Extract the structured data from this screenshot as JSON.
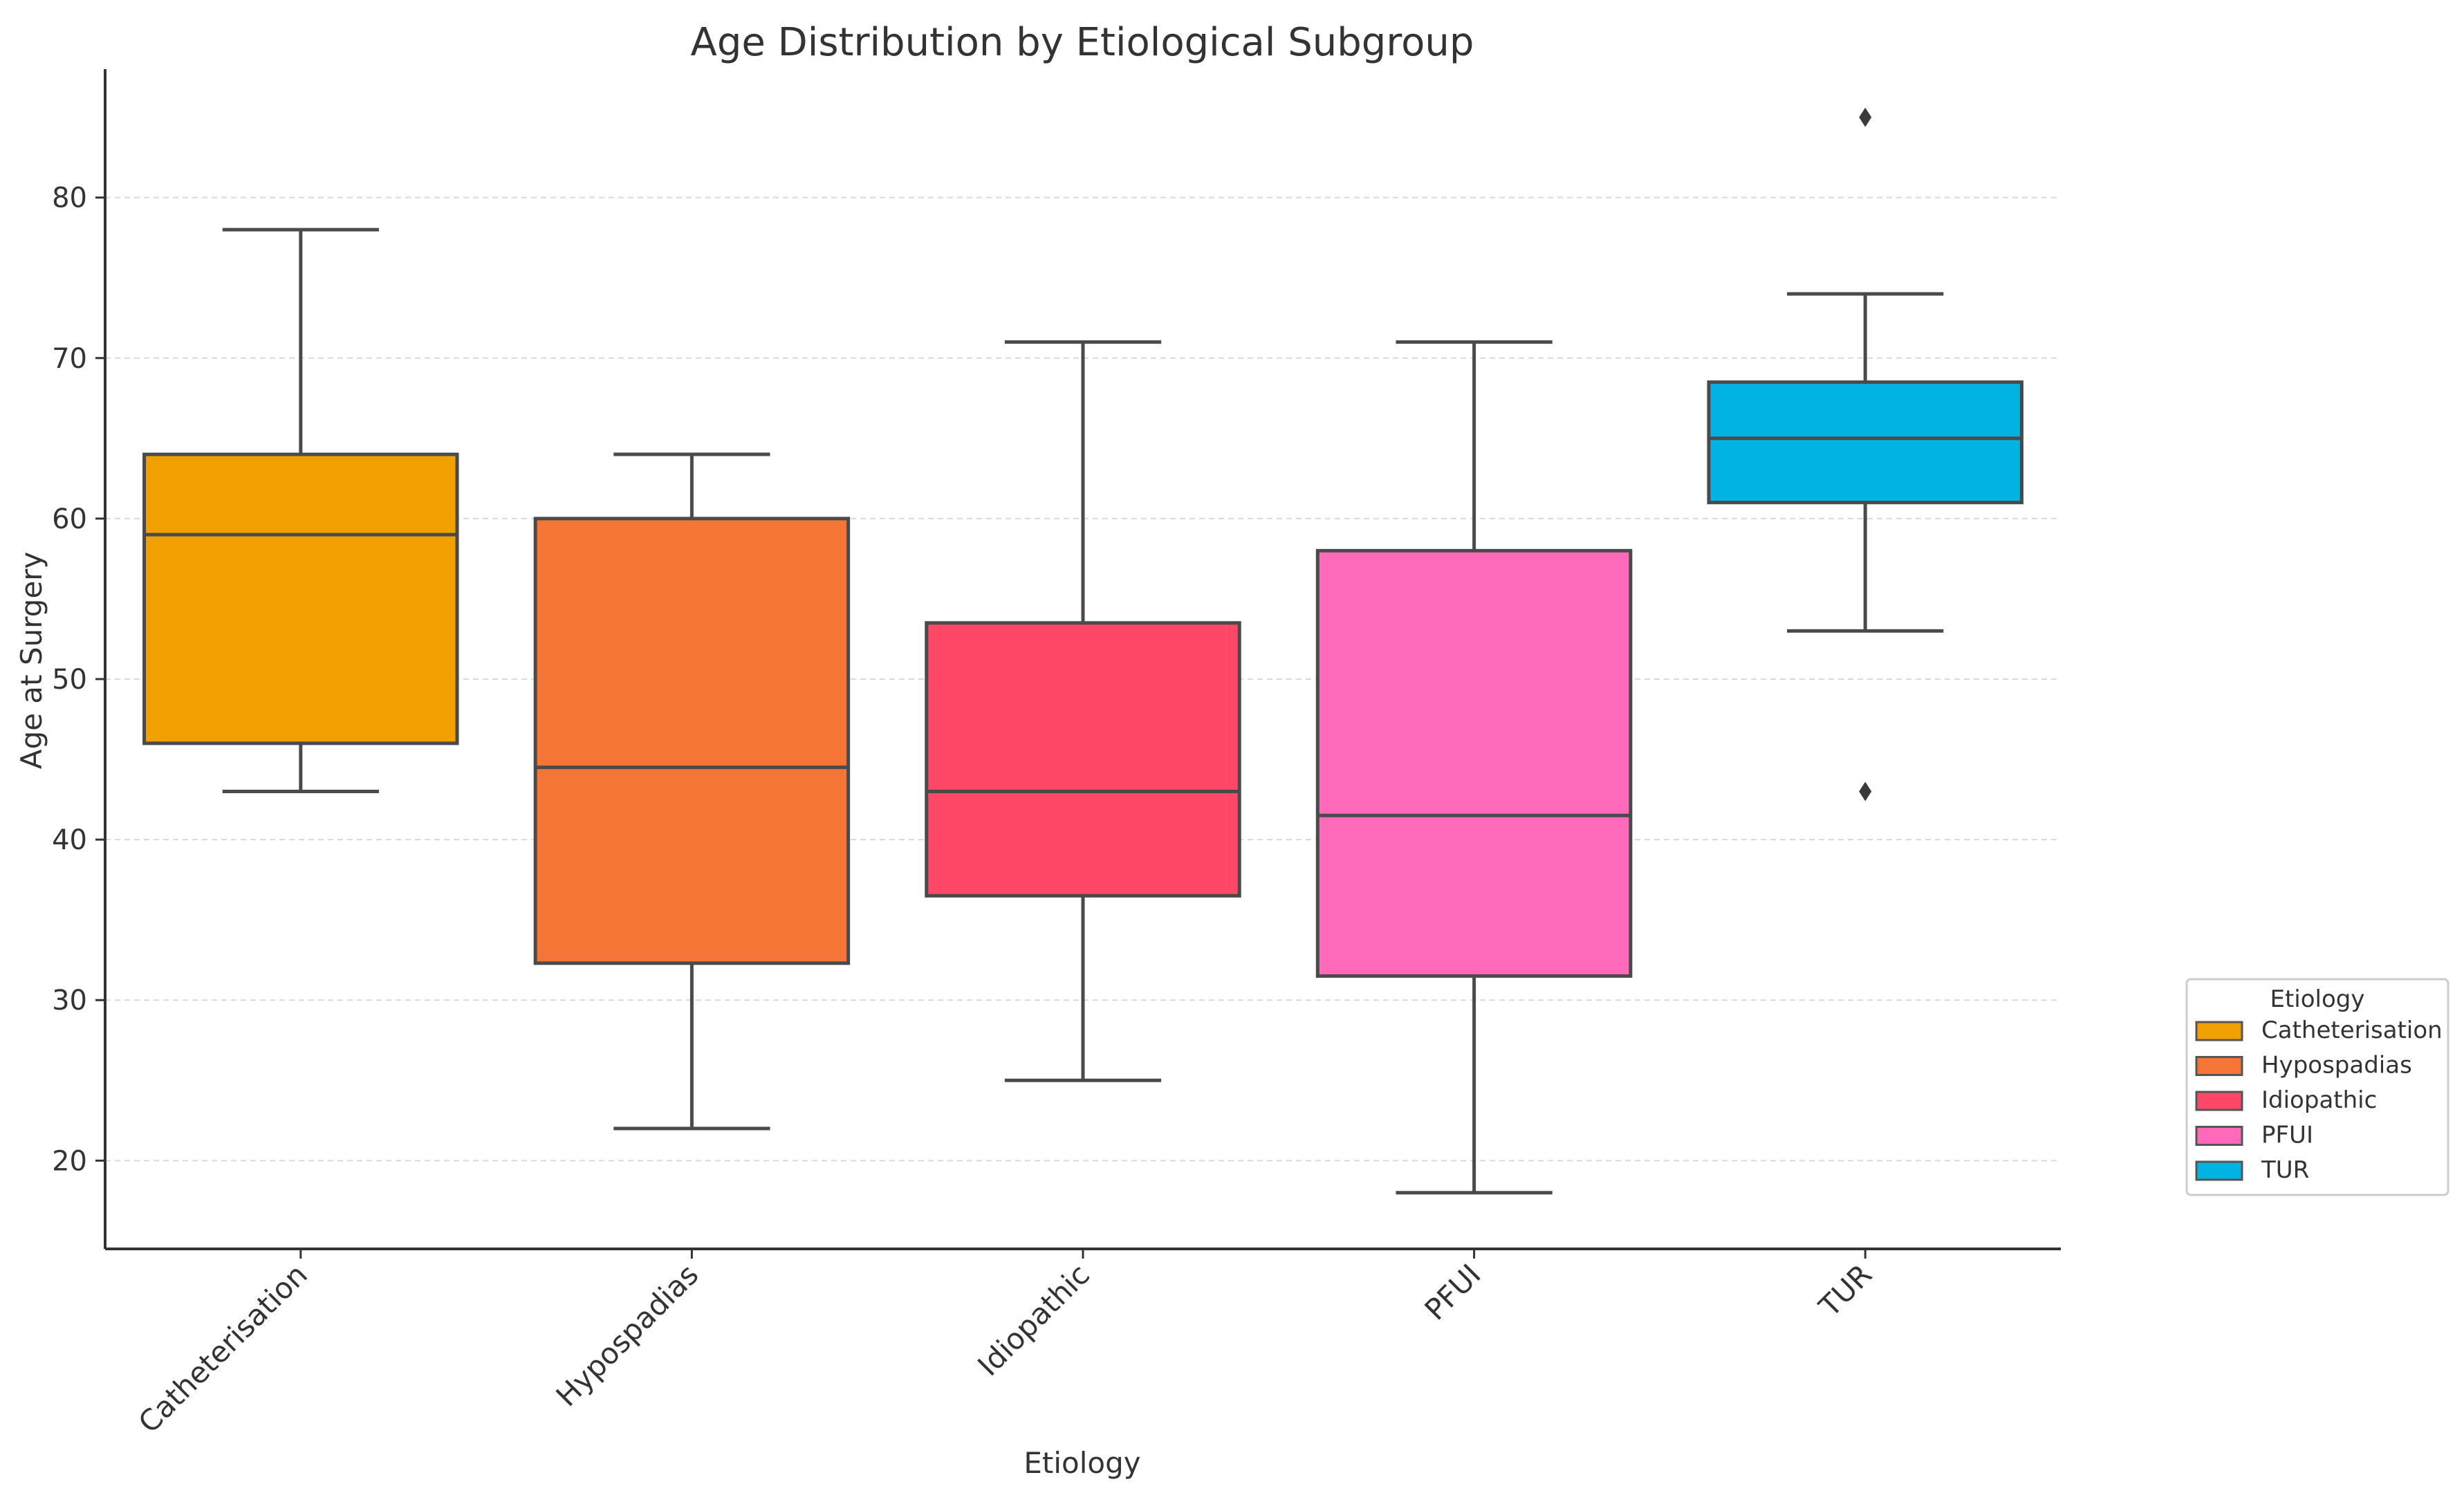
{
  "chart_data": {
    "type": "box",
    "title": "Age Distribution by Etiological Subgroup",
    "xlabel": "Etiology",
    "ylabel": "Age at Surgery",
    "ylim": [
      14.5,
      88
    ],
    "yticks": [
      20,
      30,
      40,
      50,
      60,
      70,
      80
    ],
    "grid": true,
    "legend_title": "Etiology",
    "legend_position": "right",
    "categories": [
      "Catheterisation",
      "Hypospadias",
      "Idiopathic",
      "PFUI",
      "TUR"
    ],
    "series": [
      {
        "name": "Catheterisation",
        "color": "#f0a000",
        "whisker_low": 43,
        "q1": 46,
        "median": 59,
        "q3": 64,
        "whisker_high": 78,
        "outliers": []
      },
      {
        "name": "Hypospadias",
        "color": "#f47535",
        "whisker_low": 22,
        "q1": 32.3,
        "median": 44.5,
        "q3": 60,
        "whisker_high": 64,
        "outliers": []
      },
      {
        "name": "Idiopathic",
        "color": "#ff4867",
        "whisker_low": 25,
        "q1": 36.5,
        "median": 43,
        "q3": 53.5,
        "whisker_high": 71,
        "outliers": []
      },
      {
        "name": "PFUI",
        "color": "#ff69b9",
        "whisker_low": 18,
        "q1": 31.5,
        "median": 41.5,
        "q3": 58,
        "whisker_high": 71,
        "outliers": []
      },
      {
        "name": "TUR",
        "color": "#00b3e3",
        "whisker_low": 53,
        "q1": 61,
        "median": 65,
        "q3": 68.5,
        "whisker_high": 74,
        "outliers": [
          43,
          85
        ]
      }
    ]
  }
}
